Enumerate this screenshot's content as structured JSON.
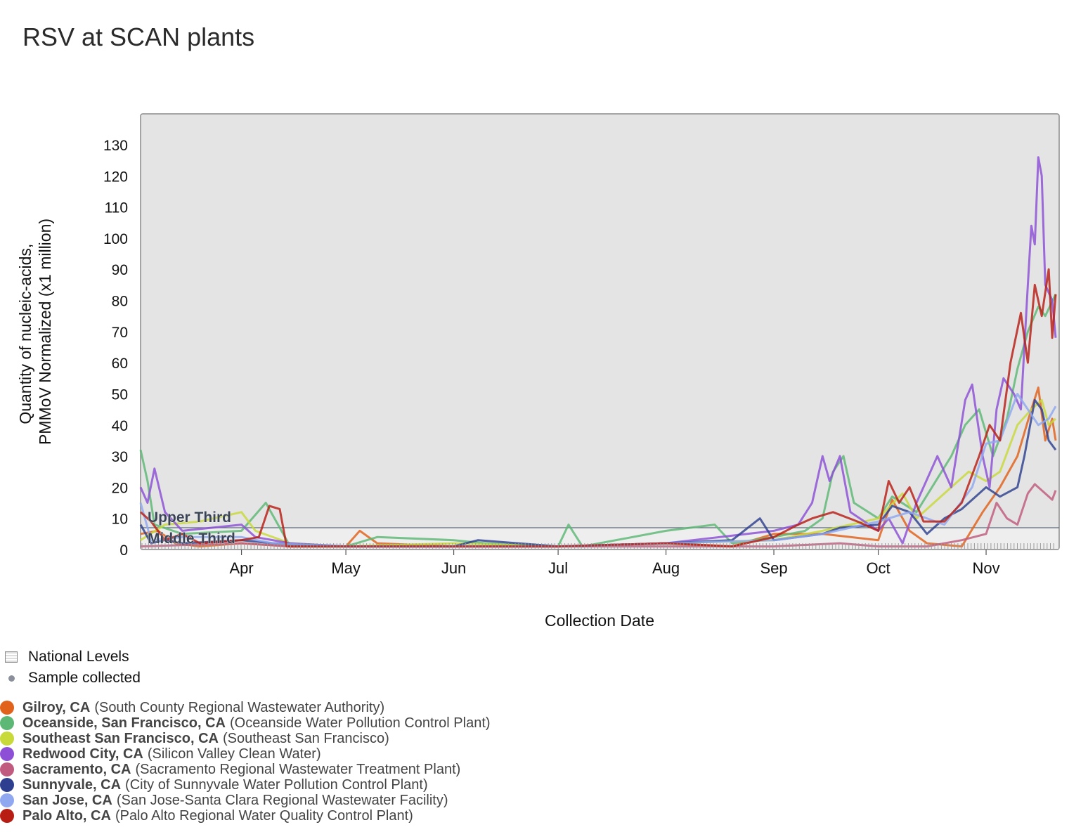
{
  "title": "RSV at SCAN plants",
  "legend": {
    "national_levels": "National Levels",
    "sample_collected": "Sample collected"
  },
  "sites": [
    {
      "name": "Gilroy, CA",
      "plant": "(South County Regional Wastewater Authority)",
      "color": "#e0621b"
    },
    {
      "name": "Oceanside, San Francisco, CA",
      "plant": "(Oceanside Water Pollution Control Plant)",
      "color": "#5cb874"
    },
    {
      "name": "Southeast San Francisco, CA",
      "plant": "(Southeast San Francisco)",
      "color": "#c8d93a"
    },
    {
      "name": "Redwood City, CA",
      "plant": "(Silicon Valley Clean Water)",
      "color": "#8c4fd6"
    },
    {
      "name": "Sacramento, CA",
      "plant": "(Sacramento Regional Wastewater Treatment Plant)",
      "color": "#c05a7e"
    },
    {
      "name": "Sunnyvale, CA",
      "plant": "(City of Sunnyvale Water Pollution Control Plant)",
      "color": "#2d3f8e"
    },
    {
      "name": "San Jose, CA",
      "plant": "(San Jose-Santa Clara Regional Wastewater Facility)",
      "color": "#8fa8f0"
    },
    {
      "name": "Palo Alto, CA",
      "plant": "(Palo Alto Regional Water Quality Control Plant)",
      "color": "#b81d14"
    }
  ],
  "chart_data": {
    "type": "line",
    "xlabel": "Collection Date",
    "ylabel": [
      "Quantity of nucleic-acids,",
      "PMMoV Normalized (x1 million)"
    ],
    "ylim": [
      0,
      140
    ],
    "yticks": [
      0,
      10,
      20,
      30,
      40,
      50,
      60,
      70,
      80,
      90,
      100,
      110,
      120,
      130
    ],
    "xlim": [
      "Mar 3",
      "Nov 22"
    ],
    "xticks": [
      {
        "label": "Apr",
        "date": "Apr 1"
      },
      {
        "label": "May",
        "date": "May 1"
      },
      {
        "label": "Jun",
        "date": "Jun 1"
      },
      {
        "label": "Jul",
        "date": "Jul 1"
      },
      {
        "label": "Aug",
        "date": "Aug 1"
      },
      {
        "label": "Sep",
        "date": "Sep 1"
      },
      {
        "label": "Oct",
        "date": "Oct 1"
      },
      {
        "label": "Nov",
        "date": "Nov 1"
      }
    ],
    "national_levels": [
      {
        "label": "Upper Third",
        "value": 7
      },
      {
        "label": "Middle Third",
        "value": 3
      }
    ],
    "grid": false,
    "series": [
      {
        "name": "Gilroy, CA",
        "points": [
          [
            "Mar 3",
            5
          ],
          [
            "Mar 8",
            6
          ],
          [
            "Mar 13",
            2
          ],
          [
            "Mar 20",
            1
          ],
          [
            "Apr 1",
            2
          ],
          [
            "Apr 15",
            1
          ],
          [
            "May 1",
            1
          ],
          [
            "May 5",
            6
          ],
          [
            "May 10",
            2
          ],
          [
            "Jun 1",
            1
          ],
          [
            "Jul 1",
            1
          ],
          [
            "Aug 1",
            2
          ],
          [
            "Aug 20",
            1
          ],
          [
            "Sep 1",
            5
          ],
          [
            "Sep 15",
            5
          ],
          [
            "Oct 1",
            3
          ],
          [
            "Oct 5",
            16
          ],
          [
            "Oct 10",
            6
          ],
          [
            "Oct 15",
            2
          ],
          [
            "Oct 25",
            1
          ],
          [
            "Oct 31",
            12
          ],
          [
            "Nov 5",
            20
          ],
          [
            "Nov 10",
            30
          ],
          [
            "Nov 14",
            45
          ],
          [
            "Nov 16",
            52
          ],
          [
            "Nov 18",
            35
          ],
          [
            "Nov 20",
            42
          ],
          [
            "Nov 21",
            35
          ]
        ]
      },
      {
        "name": "Oceanside, San Francisco, CA",
        "points": [
          [
            "Mar 3",
            32
          ],
          [
            "Mar 5",
            22
          ],
          [
            "Mar 7",
            8
          ],
          [
            "Mar 15",
            5
          ],
          [
            "Apr 1",
            6
          ],
          [
            "Apr 8",
            15
          ],
          [
            "Apr 12",
            7
          ],
          [
            "Apr 15",
            1
          ],
          [
            "May 1",
            1
          ],
          [
            "May 10",
            4
          ],
          [
            "Jun 1",
            3
          ],
          [
            "Jun 10",
            2
          ],
          [
            "Jul 1",
            1
          ],
          [
            "Jul 4",
            8
          ],
          [
            "Jul 8",
            1
          ],
          [
            "Aug 1",
            6
          ],
          [
            "Aug 15",
            8
          ],
          [
            "Aug 20",
            2
          ],
          [
            "Sep 1",
            4
          ],
          [
            "Sep 10",
            6
          ],
          [
            "Sep 15",
            10
          ],
          [
            "Sep 18",
            25
          ],
          [
            "Sep 21",
            30
          ],
          [
            "Sep 24",
            15
          ],
          [
            "Oct 1",
            10
          ],
          [
            "Oct 5",
            17
          ],
          [
            "Oct 12",
            12
          ],
          [
            "Oct 22",
            30
          ],
          [
            "Oct 26",
            40
          ],
          [
            "Oct 30",
            45
          ],
          [
            "Nov 3",
            30
          ],
          [
            "Nov 7",
            42
          ],
          [
            "Nov 10",
            58
          ],
          [
            "Nov 13",
            70
          ],
          [
            "Nov 16",
            78
          ],
          [
            "Nov 18",
            75
          ],
          [
            "Nov 21",
            82
          ]
        ]
      },
      {
        "name": "Southeast San Francisco, CA",
        "points": [
          [
            "Mar 3",
            3
          ],
          [
            "Mar 10",
            8
          ],
          [
            "Mar 20",
            9
          ],
          [
            "Apr 1",
            12
          ],
          [
            "Apr 5",
            6
          ],
          [
            "Apr 15",
            2
          ],
          [
            "May 1",
            1
          ],
          [
            "Jun 1",
            2
          ],
          [
            "Jul 1",
            1
          ],
          [
            "Aug 1",
            2
          ],
          [
            "Sep 1",
            3
          ],
          [
            "Sep 15",
            6
          ],
          [
            "Oct 1",
            10
          ],
          [
            "Oct 8",
            18
          ],
          [
            "Oct 12",
            10
          ],
          [
            "Oct 22",
            20
          ],
          [
            "Oct 27",
            25
          ],
          [
            "Nov 1",
            22
          ],
          [
            "Nov 5",
            25
          ],
          [
            "Nov 10",
            40
          ],
          [
            "Nov 14",
            45
          ],
          [
            "Nov 17",
            48
          ],
          [
            "Nov 19",
            40
          ],
          [
            "Nov 21",
            42
          ]
        ]
      },
      {
        "name": "Redwood City, CA",
        "points": [
          [
            "Mar 3",
            20
          ],
          [
            "Mar 5",
            15
          ],
          [
            "Mar 7",
            26
          ],
          [
            "Mar 10",
            12
          ],
          [
            "Mar 15",
            6
          ],
          [
            "Apr 1",
            8
          ],
          [
            "Apr 5",
            4
          ],
          [
            "Apr 15",
            2
          ],
          [
            "May 1",
            1
          ],
          [
            "Jun 1",
            1
          ],
          [
            "Jul 1",
            1
          ],
          [
            "Aug 1",
            2
          ],
          [
            "Sep 1",
            6
          ],
          [
            "Sep 8",
            8
          ],
          [
            "Sep 12",
            15
          ],
          [
            "Sep 15",
            30
          ],
          [
            "Sep 17",
            22
          ],
          [
            "Sep 20",
            30
          ],
          [
            "Sep 23",
            12
          ],
          [
            "Oct 1",
            6
          ],
          [
            "Oct 4",
            10
          ],
          [
            "Oct 8",
            2
          ],
          [
            "Oct 12",
            15
          ],
          [
            "Oct 18",
            30
          ],
          [
            "Oct 22",
            20
          ],
          [
            "Oct 26",
            48
          ],
          [
            "Oct 28",
            53
          ],
          [
            "Oct 31",
            30
          ],
          [
            "Nov 2",
            20
          ],
          [
            "Nov 4",
            45
          ],
          [
            "Nov 6",
            55
          ],
          [
            "Nov 9",
            50
          ],
          [
            "Nov 11",
            45
          ],
          [
            "Nov 13",
            85
          ],
          [
            "Nov 14",
            104
          ],
          [
            "Nov 15",
            98
          ],
          [
            "Nov 16",
            126
          ],
          [
            "Nov 17",
            120
          ],
          [
            "Nov 18",
            85
          ],
          [
            "Nov 20",
            80
          ],
          [
            "Nov 21",
            68
          ]
        ]
      },
      {
        "name": "Sacramento, CA",
        "points": [
          [
            "Mar 3",
            1
          ],
          [
            "Apr 1",
            2
          ],
          [
            "Apr 15",
            1
          ],
          [
            "May 1",
            1
          ],
          [
            "Jun 1",
            1
          ],
          [
            "Jul 1",
            1
          ],
          [
            "Aug 1",
            1
          ],
          [
            "Sep 1",
            1
          ],
          [
            "Sep 20",
            2
          ],
          [
            "Oct 1",
            1
          ],
          [
            "Oct 15",
            1
          ],
          [
            "Oct 25",
            3
          ],
          [
            "Nov 1",
            5
          ],
          [
            "Nov 4",
            15
          ],
          [
            "Nov 7",
            10
          ],
          [
            "Nov 10",
            8
          ],
          [
            "Nov 13",
            18
          ],
          [
            "Nov 15",
            21
          ],
          [
            "Nov 18",
            18
          ],
          [
            "Nov 20",
            16
          ],
          [
            "Nov 21",
            19
          ]
        ]
      },
      {
        "name": "Sunnyvale, CA",
        "points": [
          [
            "Mar 3",
            8
          ],
          [
            "Mar 6",
            2
          ],
          [
            "Mar 10",
            3
          ],
          [
            "Mar 15",
            2
          ],
          [
            "Apr 1",
            3
          ],
          [
            "Apr 10",
            2
          ],
          [
            "May 1",
            1
          ],
          [
            "Jun 1",
            1
          ],
          [
            "Jun 8",
            3
          ],
          [
            "Jul 1",
            1
          ],
          [
            "Aug 1",
            2
          ],
          [
            "Aug 20",
            3
          ],
          [
            "Aug 28",
            10
          ],
          [
            "Sep 1",
            3
          ],
          [
            "Sep 15",
            5
          ],
          [
            "Sep 20",
            7
          ],
          [
            "Oct 1",
            8
          ],
          [
            "Oct 5",
            14
          ],
          [
            "Oct 10",
            12
          ],
          [
            "Oct 15",
            5
          ],
          [
            "Oct 20",
            10
          ],
          [
            "Oct 25",
            13
          ],
          [
            "Nov 1",
            20
          ],
          [
            "Nov 5",
            17
          ],
          [
            "Nov 10",
            20
          ],
          [
            "Nov 12",
            30
          ],
          [
            "Nov 15",
            48
          ],
          [
            "Nov 17",
            45
          ],
          [
            "Nov 19",
            35
          ],
          [
            "Nov 21",
            32
          ]
        ]
      },
      {
        "name": "San Jose, CA",
        "points": [
          [
            "Mar 3",
            15
          ],
          [
            "Mar 6",
            3
          ],
          [
            "Mar 15",
            4
          ],
          [
            "Apr 1",
            4
          ],
          [
            "Apr 10",
            2
          ],
          [
            "May 1",
            1
          ],
          [
            "Jun 1",
            1
          ],
          [
            "Jul 1",
            1
          ],
          [
            "Aug 1",
            2
          ],
          [
            "Sep 1",
            3
          ],
          [
            "Sep 15",
            5
          ],
          [
            "Oct 1",
            9
          ],
          [
            "Oct 10",
            12
          ],
          [
            "Oct 20",
            8
          ],
          [
            "Oct 28",
            20
          ],
          [
            "Nov 1",
            34
          ],
          [
            "Nov 5",
            35
          ],
          [
            "Nov 10",
            50
          ],
          [
            "Nov 13",
            45
          ],
          [
            "Nov 16",
            40
          ],
          [
            "Nov 19",
            42
          ],
          [
            "Nov 21",
            46
          ]
        ]
      },
      {
        "name": "Palo Alto, CA",
        "points": [
          [
            "Mar 3",
            12
          ],
          [
            "Mar 6",
            9
          ],
          [
            "Mar 10",
            3
          ],
          [
            "Mar 15",
            5
          ],
          [
            "Mar 20",
            2
          ],
          [
            "Apr 1",
            3
          ],
          [
            "Apr 6",
            4
          ],
          [
            "Apr 9",
            14
          ],
          [
            "Apr 12",
            13
          ],
          [
            "Apr 14",
            1
          ],
          [
            "May 1",
            1
          ],
          [
            "Jun 1",
            1
          ],
          [
            "Jul 1",
            1
          ],
          [
            "Aug 1",
            2
          ],
          [
            "Aug 20",
            1
          ],
          [
            "Sep 1",
            4
          ],
          [
            "Sep 8",
            8
          ],
          [
            "Sep 12",
            10
          ],
          [
            "Sep 18",
            12
          ],
          [
            "Sep 25",
            9
          ],
          [
            "Oct 1",
            6
          ],
          [
            "Oct 4",
            22
          ],
          [
            "Oct 7",
            15
          ],
          [
            "Oct 10",
            20
          ],
          [
            "Oct 14",
            9
          ],
          [
            "Oct 20",
            9
          ],
          [
            "Oct 25",
            15
          ],
          [
            "Oct 30",
            30
          ],
          [
            "Nov 2",
            40
          ],
          [
            "Nov 5",
            35
          ],
          [
            "Nov 8",
            60
          ],
          [
            "Nov 11",
            76
          ],
          [
            "Nov 13",
            60
          ],
          [
            "Nov 15",
            85
          ],
          [
            "Nov 17",
            75
          ],
          [
            "Nov 19",
            90
          ],
          [
            "Nov 20",
            68
          ],
          [
            "Nov 21",
            82
          ]
        ]
      }
    ]
  }
}
